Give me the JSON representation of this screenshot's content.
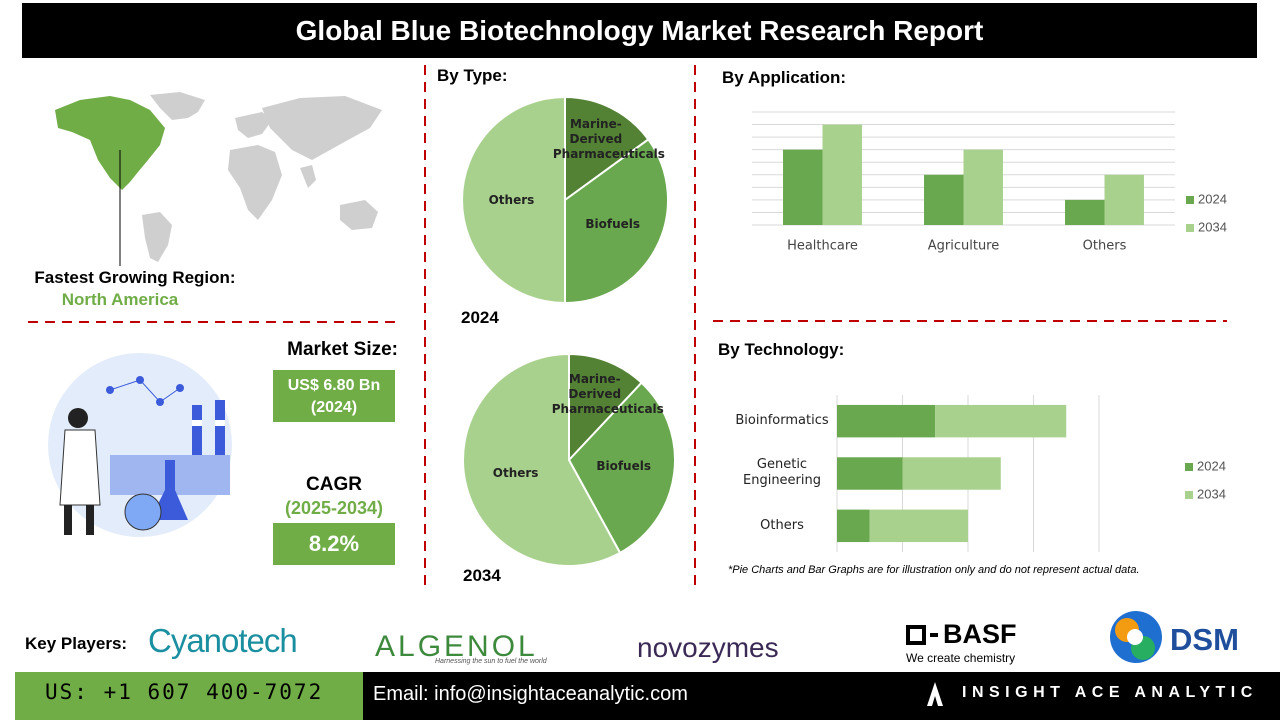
{
  "header": {
    "title": "Global Blue Biotechnology Market Research Report"
  },
  "region": {
    "label": "Fastest Growing Region:",
    "value": "North America"
  },
  "market": {
    "size_label": "Market Size:",
    "size_value": "US$ 6.80 Bn (2024)",
    "cagr_label": "CAGR",
    "cagr_period": "(2025-2034)",
    "cagr_value": "8.2%"
  },
  "chart_data": [
    {
      "type": "pie",
      "title": "By Type:",
      "subtitle": "2024",
      "categories": [
        "Marine-Derived Pharmaceuticals",
        "Biofuels",
        "Others"
      ],
      "values": [
        15,
        35,
        50
      ],
      "colors": [
        "#548235",
        "#6aa84f",
        "#a9d18e"
      ]
    },
    {
      "type": "pie",
      "subtitle": "2034",
      "categories": [
        "Marine-Derived Pharmaceuticals",
        "Biofuels",
        "Others"
      ],
      "values": [
        12,
        30,
        58
      ],
      "colors": [
        "#548235",
        "#6aa84f",
        "#a9d18e"
      ]
    },
    {
      "type": "bar",
      "title": "By Application:",
      "orientation": "vertical",
      "stacked": false,
      "categories": [
        "Healthcare",
        "Agriculture",
        "Others"
      ],
      "series": [
        {
          "name": "2024",
          "color": "#6aa84f",
          "values": [
            3,
            2,
            1
          ]
        },
        {
          "name": "2034",
          "color": "#a9d18e",
          "values": [
            4,
            3,
            2
          ]
        }
      ],
      "ylim": [
        0,
        4.5
      ],
      "yticks": [
        0,
        0.5,
        1,
        1.5,
        2,
        2.5,
        3,
        3.5,
        4,
        4.5
      ],
      "grid": true,
      "legend": "right"
    },
    {
      "type": "bar",
      "title": "By Technology:",
      "orientation": "horizontal",
      "stacked": true,
      "categories": [
        "Bioinformatics",
        "Genetic Engineering",
        "Others"
      ],
      "series": [
        {
          "name": "2024",
          "color": "#6aa84f",
          "values": [
            1.5,
            1,
            0.5
          ]
        },
        {
          "name": "2034",
          "color": "#a9d18e",
          "values": [
            2,
            1.5,
            1.5
          ]
        }
      ],
      "xlim": [
        0,
        4
      ],
      "xticks": [
        0,
        1,
        2,
        3,
        4
      ],
      "grid": true,
      "legend": "right"
    }
  ],
  "note": "*Pie Charts and Bar Graphs are for illustration only and do not represent actual data.",
  "key_players": {
    "label": "Key Players:",
    "companies": [
      {
        "name": "Cyanotech"
      },
      {
        "name": "ALGENOL",
        "tagline": "Harnessing the sun to fuel the world"
      },
      {
        "name": "novozymes"
      },
      {
        "name": "BASF",
        "tagline": "We create chemistry"
      },
      {
        "name": "DSM"
      }
    ]
  },
  "footer": {
    "phone": "US: +1 607 400-7072",
    "email": "Email: info@insightaceanalytic.com",
    "brand": "INSIGHT ACE ANALYTIC"
  }
}
